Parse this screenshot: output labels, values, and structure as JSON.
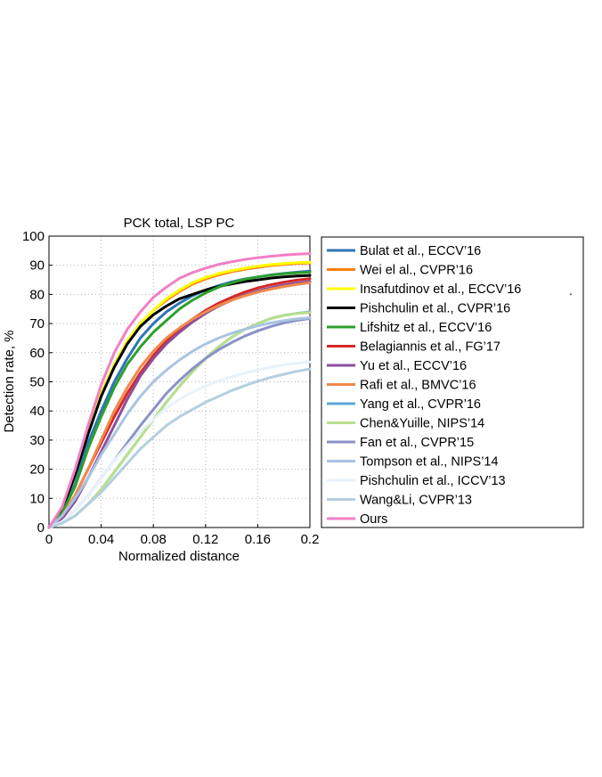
{
  "chart_data": {
    "type": "line",
    "title": "PCK total, LSP PC",
    "xlabel": "Normalized distance",
    "ylabel": "Detection rate, %",
    "xlim": [
      0,
      0.2
    ],
    "ylim": [
      0,
      100
    ],
    "xticks": [
      "0",
      "0.04",
      "0.08",
      "0.12",
      "0.16",
      "0.2"
    ],
    "yticks": [
      "0",
      "10",
      "20",
      "30",
      "40",
      "50",
      "60",
      "70",
      "80",
      "90",
      "100"
    ],
    "grid": true,
    "legend_position": "right",
    "legend_extra_mark": ".",
    "x": [
      0,
      0.01,
      0.02,
      0.03,
      0.04,
      0.05,
      0.06,
      0.07,
      0.08,
      0.09,
      0.1,
      0.11,
      0.12,
      0.13,
      0.14,
      0.15,
      0.16,
      0.17,
      0.18,
      0.19,
      0.2
    ],
    "series": [
      {
        "name": "Bulat et al., ECCV’16",
        "color": "#2e75b6",
        "values": [
          0,
          5,
          15,
          29,
          40,
          50,
          58,
          65,
          70,
          74,
          77,
          79.5,
          81.5,
          83,
          84.3,
          85.3,
          86,
          86.7,
          87.2,
          87.6,
          88
        ]
      },
      {
        "name": "Wei el al., CVPR’16",
        "color": "#ff7f0e",
        "values": [
          0,
          6,
          18,
          33,
          46,
          56,
          64,
          70,
          74.5,
          78,
          81,
          83.5,
          85.3,
          86.7,
          87.8,
          88.6,
          89.3,
          89.9,
          90.3,
          90.6,
          90.8
        ]
      },
      {
        "name": "Insafutdinov et al., ECCV’16",
        "color": "#ffff00",
        "values": [
          0,
          6,
          18,
          33,
          46,
          56,
          64,
          70,
          74.5,
          78.5,
          81.5,
          84,
          85.8,
          87.2,
          88.2,
          89,
          89.7,
          90.2,
          90.6,
          90.9,
          91
        ]
      },
      {
        "name": "Pishchulin et al., CVPR’16",
        "color": "#000000",
        "values": [
          0,
          6,
          18,
          32,
          45,
          55,
          63,
          69,
          73,
          76,
          78.5,
          80,
          81.5,
          82.7,
          83.6,
          84.4,
          85,
          85.6,
          86,
          86.3,
          86.5
        ]
      },
      {
        "name": "Lifshitz et al., ECCV’16",
        "color": "#2ca02c",
        "values": [
          0,
          5,
          14,
          27,
          38,
          48,
          56,
          62,
          67,
          71,
          75,
          78,
          80.5,
          82.5,
          84,
          85.2,
          86,
          86.6,
          87.1,
          87.4,
          87.6
        ]
      },
      {
        "name": "Belagiannis et al., FG’17",
        "color": "#d62728",
        "values": [
          0,
          4,
          11,
          20,
          29,
          38,
          46,
          53,
          59,
          64,
          68,
          71.5,
          74.5,
          77,
          79,
          80.8,
          82.2,
          83.3,
          84.2,
          84.9,
          85.4
        ]
      },
      {
        "name": "Yu et al., ECCV’16",
        "color": "#8b4f9e",
        "values": [
          0,
          3,
          9,
          17,
          26,
          35,
          44,
          52,
          58,
          63,
          67,
          70.5,
          73.5,
          76,
          78,
          79.8,
          81.2,
          82.3,
          83.2,
          83.9,
          84.4
        ]
      },
      {
        "name": "Rafi et al., BMVC’16",
        "color": "#f08a4b",
        "values": [
          0,
          4,
          11,
          20,
          30,
          40,
          48,
          55,
          60.5,
          65,
          68.5,
          71.5,
          74,
          76.2,
          78,
          79.5,
          80.8,
          81.8,
          82.7,
          83.4,
          84
        ]
      },
      {
        "name": "Yang et al., CVPR’16",
        "color": "#5aa7d9",
        "values": [
          0,
          1.5,
          4,
          8,
          13,
          19,
          25,
          31,
          37,
          43,
          48.5,
          53.5,
          58,
          62,
          65.3,
          68,
          70,
          71.7,
          72.8,
          73.5,
          74
        ]
      },
      {
        "name": "Chen&Yuille, NIPS’14",
        "color": "#b8df8c",
        "values": [
          0,
          1.5,
          4,
          8,
          13,
          19,
          25,
          31,
          37,
          43,
          48.5,
          53.5,
          58,
          62,
          65.3,
          68,
          70,
          71.7,
          72.8,
          73.5,
          73.8
        ]
      },
      {
        "name": "Fan et al., CVPR’15",
        "color": "#8a92c7",
        "values": [
          0,
          2,
          6,
          11,
          17,
          23,
          29,
          35,
          40.5,
          46,
          50.5,
          54.5,
          58,
          61,
          63.5,
          65.7,
          67.5,
          69,
          70.2,
          71.1,
          71.7
        ]
      },
      {
        "name": "Tompson et al., NIPS’14",
        "color": "#a9c4e0",
        "values": [
          0,
          4,
          10,
          17,
          25,
          32,
          39,
          45,
          50,
          54,
          57.5,
          60.5,
          63,
          65,
          66.7,
          68,
          69.2,
          70.2,
          71,
          71.6,
          72
        ]
      },
      {
        "name": "Pishchulin et al., ICCV’13",
        "color": "#e8f2fb",
        "values": [
          0,
          2,
          6,
          11,
          17,
          23,
          28,
          33,
          37,
          41,
          44,
          46.5,
          48.5,
          50.3,
          51.7,
          53,
          54,
          55,
          55.8,
          56.4,
          56.8
        ]
      },
      {
        "name": "Wang&Li, CVPR’13",
        "color": "#b4cfe0",
        "values": [
          0,
          1.5,
          4,
          8,
          12,
          17,
          22,
          27,
          31,
          35,
          38,
          40.5,
          43,
          45,
          47,
          48.7,
          50.2,
          51.5,
          52.6,
          53.6,
          54.4
        ]
      },
      {
        "name": "Ours",
        "color": "#f27fc4",
        "values": [
          0,
          7,
          20,
          35,
          49,
          60,
          68,
          74,
          79,
          82.5,
          85.5,
          87.5,
          89,
          90.3,
          91.2,
          92,
          92.6,
          93.1,
          93.5,
          93.8,
          94
        ]
      }
    ]
  }
}
